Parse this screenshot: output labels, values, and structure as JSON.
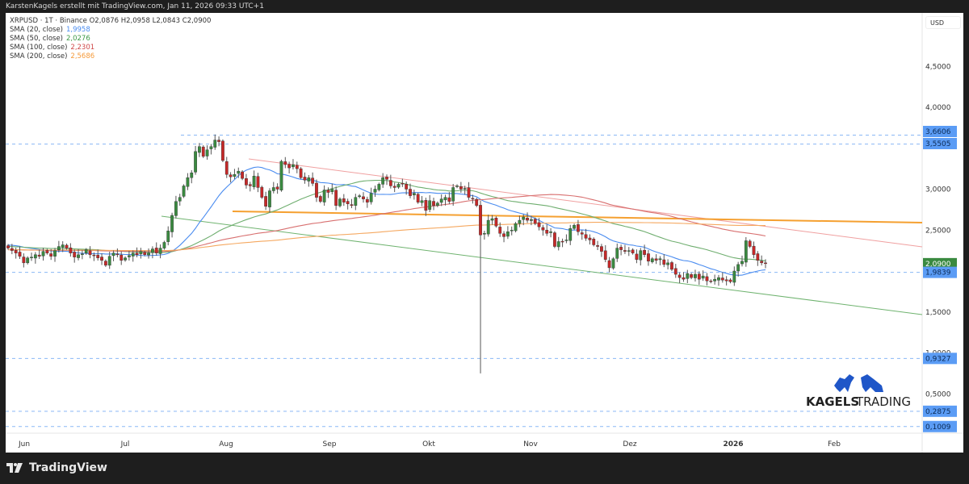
{
  "header": {
    "attribution": "KarstenKagels erstellt mit TradingView.com, Jan 11, 2026 09:33 UTC+1"
  },
  "legend": {
    "symbol_line": "XRPUSD · 1T · Binance  O2,0876  H2,0958  L2,0843  C2,0900",
    "sma": [
      {
        "label": "SMA (20, close)",
        "value": "1,9958",
        "color": "#4a8cf0"
      },
      {
        "label": "SMA (50, close)",
        "value": "2,0276",
        "color": "#3f9a48"
      },
      {
        "label": "SMA (100, close)",
        "value": "2,2301",
        "color": "#d04848"
      },
      {
        "label": "SMA (200, close)",
        "value": "2,5686",
        "color": "#f59a3a"
      }
    ]
  },
  "price_axis": {
    "currency": "USD",
    "ticks": [
      "4,5000",
      "4,0000",
      "3,0000",
      "2,5000",
      "1,5000",
      "1,0000",
      "0,5000"
    ],
    "badges": [
      {
        "value": "3,6606",
        "color": "#5b9cf5"
      },
      {
        "value": "3,5505",
        "color": "#5b9cf5"
      },
      {
        "value": "2,0900",
        "color": "#3a8a40"
      },
      {
        "value": "1,9839",
        "color": "#5b9cf5"
      },
      {
        "value": "0,9327",
        "color": "#5b9cf5"
      },
      {
        "value": "0,2875",
        "color": "#5b9cf5"
      },
      {
        "value": "0,1009",
        "color": "#5b9cf5"
      }
    ]
  },
  "time_axis": {
    "labels": [
      "Jun",
      "Jul",
      "Aug",
      "Sep",
      "Okt",
      "Nov",
      "Dez",
      "2026",
      "Feb"
    ]
  },
  "watermark": {
    "brand": "KAGELS",
    "suffix": "TRADING"
  },
  "footer": {
    "brand": "TradingView"
  },
  "chart_data": {
    "type": "candlestick",
    "title": "XRPUSD · 1T · Binance",
    "ohlc_last": {
      "open": 2.0876,
      "high": 2.0958,
      "low": 2.0843,
      "close": 2.09
    },
    "xlabel": "",
    "ylabel": "USD",
    "ylim": [
      0.05,
      5.0
    ],
    "x_ticks": [
      "Jun",
      "Jul",
      "Aug",
      "Sep",
      "Okt",
      "Nov",
      "Dez",
      "2026",
      "Feb"
    ],
    "y_ticks": [
      0.5,
      1.0,
      1.5,
      2.5,
      3.0,
      4.0,
      4.5
    ],
    "horizontal_levels": [
      3.6606,
      3.5505,
      1.9839,
      0.9327,
      0.2875,
      0.1009
    ],
    "current_price": 2.09,
    "series": [
      {
        "name": "SMA (20, close)",
        "last": 1.9958,
        "color": "#4a8cf0"
      },
      {
        "name": "SMA (50, close)",
        "last": 2.0276,
        "color": "#3f9a48"
      },
      {
        "name": "SMA (100, close)",
        "last": 2.2301,
        "color": "#d04848"
      },
      {
        "name": "SMA (200, close)",
        "last": 2.5686,
        "color": "#f59a3a"
      }
    ],
    "closes": [
      2.28,
      2.25,
      2.22,
      2.18,
      2.1,
      2.16,
      2.17,
      2.2,
      2.18,
      2.24,
      2.22,
      2.18,
      2.25,
      2.3,
      2.32,
      2.28,
      2.22,
      2.17,
      2.2,
      2.21,
      2.26,
      2.2,
      2.19,
      2.16,
      2.13,
      2.07,
      2.18,
      2.22,
      2.2,
      2.13,
      2.16,
      2.19,
      2.22,
      2.2,
      2.24,
      2.2,
      2.22,
      2.27,
      2.22,
      2.28,
      2.35,
      2.49,
      2.68,
      2.85,
      2.9,
      3.04,
      3.14,
      3.2,
      3.46,
      3.52,
      3.4,
      3.48,
      3.52,
      3.6,
      3.58,
      3.35,
      3.18,
      3.15,
      3.18,
      3.22,
      3.13,
      3.05,
      3.04,
      3.16,
      3.02,
      2.9,
      2.79,
      2.98,
      3.02,
      3.0,
      3.34,
      3.3,
      3.26,
      3.3,
      3.25,
      3.14,
      3.11,
      3.14,
      3.07,
      2.9,
      2.85,
      2.99,
      2.96,
      3.0,
      2.8,
      2.88,
      2.84,
      2.82,
      2.8,
      2.9,
      2.92,
      2.88,
      2.84,
      2.95,
      3.0,
      3.06,
      3.14,
      3.12,
      3.04,
      3.02,
      3.06,
      3.07,
      3.0,
      2.92,
      2.95,
      2.84,
      2.86,
      2.74,
      2.86,
      2.8,
      2.83,
      2.88,
      2.9,
      2.85,
      3.02,
      3.04,
      3.0,
      3.01,
      2.9,
      2.88,
      2.8,
      2.44,
      2.46,
      2.62,
      2.64,
      2.55,
      2.46,
      2.42,
      2.48,
      2.5,
      2.58,
      2.62,
      2.66,
      2.62,
      2.63,
      2.58,
      2.54,
      2.5,
      2.46,
      2.48,
      2.3,
      2.36,
      2.36,
      2.38,
      2.52,
      2.56,
      2.48,
      2.45,
      2.4,
      2.38,
      2.32,
      2.3,
      2.24,
      2.14,
      2.04,
      2.15,
      2.28,
      2.26,
      2.24,
      2.25,
      2.22,
      2.14,
      2.25,
      2.2,
      2.12,
      2.15,
      2.13,
      2.15,
      2.08,
      2.1,
      2.02,
      1.96,
      1.92,
      1.9,
      1.97,
      1.92,
      1.96,
      1.9,
      1.94,
      1.88,
      1.87,
      1.9,
      1.92,
      1.89,
      1.88,
      1.87,
      2.0,
      2.08,
      2.12,
      2.37,
      2.3,
      2.2,
      2.13,
      2.1,
      2.09
    ]
  }
}
